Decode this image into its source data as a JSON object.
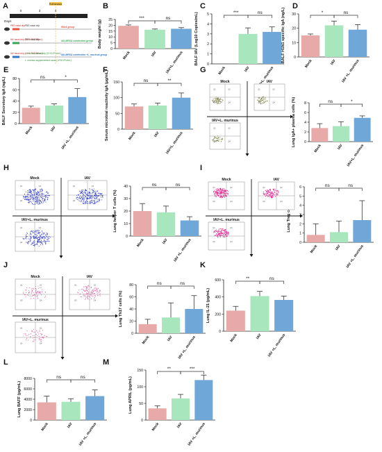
{
  "colors": {
    "mock": "#e8aaa8",
    "iav": "#a8e6bd",
    "lm": "#6fa7d8",
    "axis": "#222222",
    "flow_mock": "#6b6f2a",
    "flow_blue": "#2a37c9",
    "flow_magenta": "#e0208a",
    "flow_pink": "#d8559c"
  },
  "group_labels": [
    "Mock",
    "IAV",
    "IAV+L. murinus"
  ],
  "timeline": {
    "panel": "A",
    "days_label": "Days",
    "day_ticks": [
      "0",
      "3",
      "4"
    ],
    "marker_label": "Euthanasia",
    "rows": [
      {
        "left": "PBS nasal drip",
        "mid": "PBS nasal drip",
        "right": "Mock group",
        "color": "#e8503a"
      },
      {
        "left": "IAV nasal drip (10^4 TCID50/mL)",
        "mid": "PBS nasal drip",
        "right": "IAV-MRSA coinfection group",
        "color": "#3aa655"
      },
      {
        "left": "IAV nasal drip (10^4 TCID50/mL)",
        "mid": "L. murinus nasal drip (10^8 CFU/mL)",
        "mid2": "L. murinus supplemented nasal (10^8 CFU/mL)",
        "right": "IAV-MRSA coinfection +L. murinus group",
        "color": "#2f74c0"
      }
    ]
  },
  "flow": {
    "G": {
      "titles": [
        "Mock",
        "IAV",
        "IAV+L. murinus"
      ]
    },
    "H": {
      "titles": [
        "Mock",
        "IAV",
        "IAV+L. murinus"
      ]
    },
    "I": {
      "titles": [
        "Mock",
        "IAV",
        "IAV+L. murinus"
      ]
    },
    "J": {
      "titles": [
        "Mock",
        "IAV",
        "IAV+L. murinus"
      ]
    }
  },
  "chart_data": [
    {
      "panel": "B",
      "type": "bar",
      "ylabel": "Body weight (g)",
      "categories": [
        "Mock",
        "IAV",
        "IAV+L. murinus"
      ],
      "values": [
        19.5,
        16.2,
        17.0
      ],
      "errors": [
        0.8,
        0.6,
        1.0
      ],
      "ylim": [
        0,
        25
      ],
      "yticks": [
        0,
        5,
        10,
        15,
        20,
        25
      ],
      "sig": [
        {
          "a": 0,
          "b": 1,
          "label": "***"
        },
        {
          "a": 1,
          "b": 2,
          "label": "ns"
        }
      ]
    },
    {
      "panel": "C",
      "type": "bar",
      "ylabel": "BALF IAV (Log10 Copies/mL)",
      "categories": [
        "Mock",
        "IAV",
        "IAV+L. murinus"
      ],
      "values": [
        0,
        3.0,
        3.2
      ],
      "errors": [
        0,
        0.6,
        0.5
      ],
      "ylim": [
        0,
        5
      ],
      "yticks": [
        0,
        1,
        2,
        3,
        4,
        5
      ],
      "sig": [
        {
          "a": 0,
          "b": 1,
          "label": "***"
        },
        {
          "a": 1,
          "b": 2,
          "label": "ns"
        }
      ]
    },
    {
      "panel": "D",
      "type": "bar",
      "ylabel": "BALF H1N1 specific IgA (ng/L)",
      "categories": [
        "Mock",
        "IAV",
        "IAV +L. murinus"
      ],
      "values": [
        15,
        22,
        19
      ],
      "errors": [
        1,
        3,
        3.5
      ],
      "ylim": [
        0,
        30
      ],
      "yticks": [
        0,
        10,
        20,
        30
      ],
      "sig": [
        {
          "a": 0,
          "b": 1,
          "label": "*"
        },
        {
          "a": 1,
          "b": 2,
          "label": "ns"
        }
      ]
    },
    {
      "panel": "E",
      "type": "bar",
      "ylabel": "BALF Secretory IgA (ng/L)",
      "categories": [
        "Mock",
        "IAV",
        "IAV +L. murinus"
      ],
      "values": [
        28,
        32,
        47
      ],
      "errors": [
        3,
        3,
        15
      ],
      "ylim": [
        0,
        80
      ],
      "yticks": [
        0,
        20,
        40,
        60,
        80
      ],
      "sig": [
        {
          "a": 0,
          "b": 1,
          "label": "ns"
        },
        {
          "a": 1,
          "b": 2,
          "label": "*"
        }
      ]
    },
    {
      "panel": "F",
      "type": "bar",
      "ylabel": "Serum microbial reactivity IgA (µg/mL)",
      "categories": [
        "Mock",
        "IAV",
        "IAV+L. murinus"
      ],
      "values": [
        72,
        75,
        100
      ],
      "errors": [
        8,
        8,
        15
      ],
      "ylim": [
        0,
        150
      ],
      "yticks": [
        0,
        50,
        100,
        150
      ],
      "sig": [
        {
          "a": 0,
          "b": 1,
          "label": "ns"
        },
        {
          "a": 1,
          "b": 2,
          "label": "**"
        }
      ]
    },
    {
      "panel": "G",
      "type": "bar",
      "ylabel": "Lung IgA+ plasma cells (%)",
      "categories": [
        "Mock",
        "IAV",
        "IAV+L. murinus"
      ],
      "values": [
        2.8,
        3.2,
        4.9
      ],
      "errors": [
        0.9,
        0.9,
        0.4
      ],
      "ylim": [
        0,
        8
      ],
      "yticks": [
        0,
        2,
        4,
        6,
        8
      ],
      "sig": [
        {
          "a": 0,
          "b": 1,
          "label": "ns"
        },
        {
          "a": 1,
          "b": 2,
          "label": "*"
        }
      ]
    },
    {
      "panel": "H",
      "type": "bar",
      "ylabel": "Lung helper T cells (%)",
      "categories": [
        "Mock",
        "IAV",
        "IAV +L. murinus"
      ],
      "values": [
        20,
        19,
        12.5
      ],
      "errors": [
        6,
        5,
        3
      ],
      "ylim": [
        0,
        40
      ],
      "yticks": [
        0,
        10,
        20,
        30,
        40
      ],
      "sig": [
        {
          "a": 0,
          "b": 1,
          "label": "ns"
        },
        {
          "a": 1,
          "b": 2,
          "label": "ns"
        }
      ]
    },
    {
      "panel": "I",
      "type": "bar",
      "ylabel": "Lung Treg cells (%)",
      "categories": [
        "Mock",
        "IAV",
        "IAV +L. murinus"
      ],
      "values": [
        0.8,
        1.1,
        2.4
      ],
      "errors": [
        1.2,
        1.2,
        2.1
      ],
      "ylim": [
        0,
        6
      ],
      "yticks": [
        0,
        1,
        2,
        3,
        4,
        5,
        6
      ],
      "sig": [
        {
          "a": 0,
          "b": 1,
          "label": "ns"
        },
        {
          "a": 1,
          "b": 2,
          "label": "ns"
        }
      ]
    },
    {
      "panel": "J",
      "type": "bar",
      "ylabel": "Lung Th17 cells (%)",
      "categories": [
        "Mock",
        "IAV",
        "IAV +L. murinus"
      ],
      "values": [
        15,
        26,
        40
      ],
      "errors": [
        8,
        24,
        22
      ],
      "ylim": [
        0,
        80
      ],
      "yticks": [
        0,
        20,
        40,
        60,
        80
      ],
      "sig": [
        {
          "a": 0,
          "b": 1,
          "label": "ns"
        },
        {
          "a": 1,
          "b": 2,
          "label": "ns"
        }
      ]
    },
    {
      "panel": "K",
      "type": "bar",
      "ylabel": "Lung IL-21 (pg/mL)",
      "categories": [
        "Mock",
        "IAV",
        "IAV +L. murinus"
      ],
      "values": [
        240,
        410,
        365
      ],
      "errors": [
        50,
        55,
        45
      ],
      "ylim": [
        0,
        600
      ],
      "yticks": [
        0,
        200,
        400,
        600
      ],
      "sig": [
        {
          "a": 0,
          "b": 1,
          "label": "**"
        },
        {
          "a": 1,
          "b": 2,
          "label": "ns"
        }
      ]
    },
    {
      "panel": "L",
      "type": "bar",
      "ylabel": "Lung BAFF (pg/mL)",
      "categories": [
        "Mock",
        "IAV",
        "IAV +L. murinus"
      ],
      "values": [
        3400,
        3500,
        4600
      ],
      "errors": [
        1200,
        600,
        1200
      ],
      "ylim": [
        0,
        8000
      ],
      "yticks": [
        0,
        2000,
        4000,
        6000,
        8000
      ],
      "sig": [
        {
          "a": 0,
          "b": 1,
          "label": "ns"
        },
        {
          "a": 1,
          "b": 2,
          "label": "ns"
        }
      ]
    },
    {
      "panel": "M",
      "type": "bar",
      "ylabel": "Lung APRIL (pg/mL)",
      "categories": [
        "Mock",
        "IAV",
        "IAV +L. murinus"
      ],
      "values": [
        35,
        65,
        120
      ],
      "errors": [
        8,
        12,
        15
      ],
      "ylim": [
        0,
        150
      ],
      "yticks": [
        0,
        50,
        100,
        150
      ],
      "sig": [
        {
          "a": 0,
          "b": 1,
          "label": "**"
        },
        {
          "a": 1,
          "b": 2,
          "label": "***"
        }
      ]
    }
  ]
}
